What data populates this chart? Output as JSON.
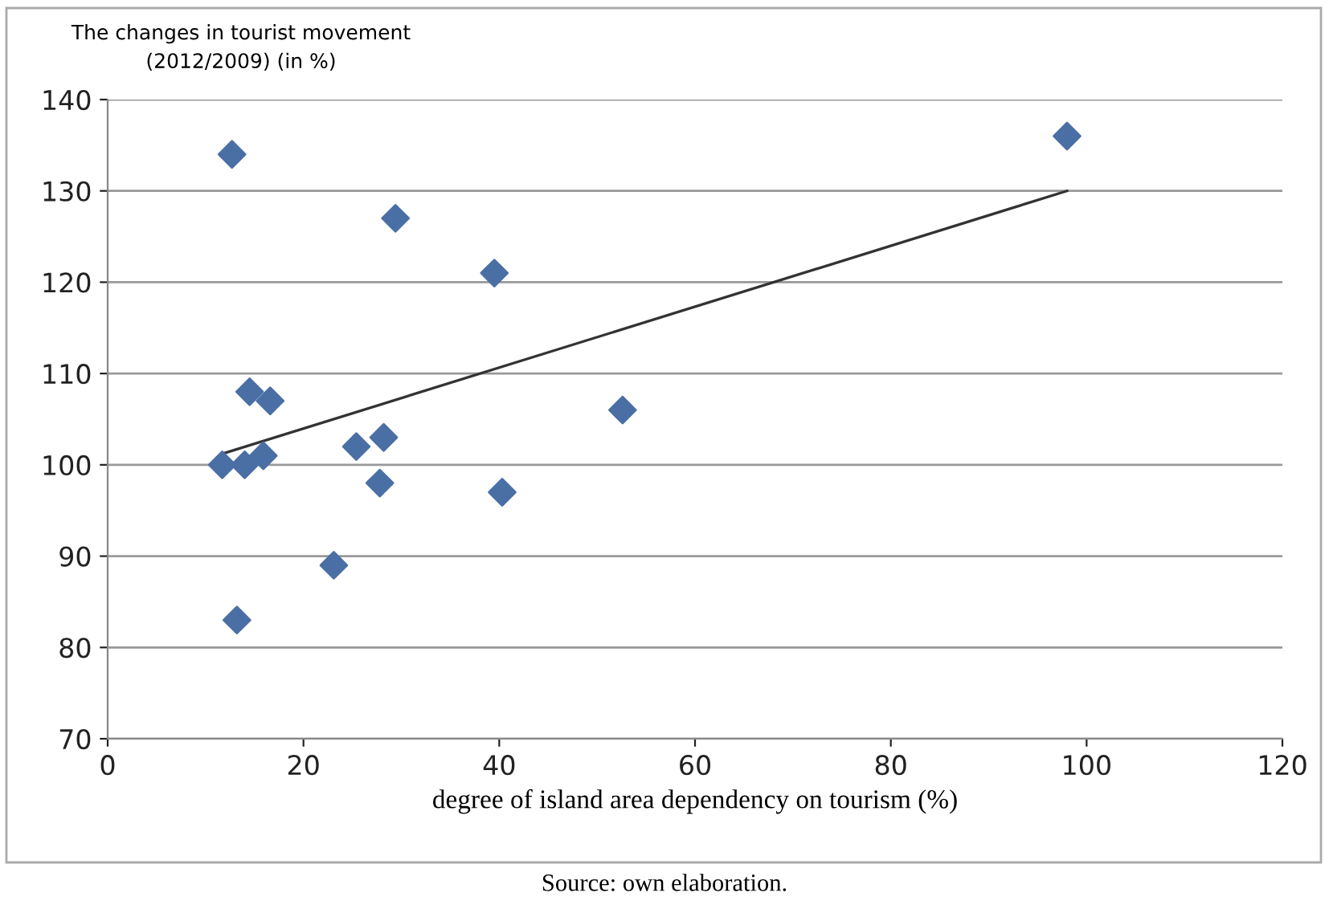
{
  "chart_data": {
    "type": "scatter",
    "title": "The changes in tourist movement\n(2012/2009) (in %)",
    "xlabel": "degree of island area dependency on tourism (%)",
    "annotations": [
      "Source: own elaboration."
    ],
    "xlim": [
      0,
      120
    ],
    "xticks": [
      0,
      20,
      40,
      60,
      80,
      100,
      120
    ],
    "ylim": [
      70,
      140
    ],
    "yticks": [
      70,
      80,
      90,
      100,
      110,
      120,
      130,
      140
    ],
    "grid": "y",
    "series": [
      {
        "marker": "diamond",
        "color": "#4a6fa5",
        "x": [
          12.7,
          29.4,
          39.5,
          14.5,
          16.6,
          52.6,
          11.7,
          14.0,
          15.9,
          25.4,
          28.2,
          27.8,
          40.3,
          23.1,
          13.2,
          98.0
        ],
        "values": [
          134,
          127,
          121,
          108,
          107,
          106,
          100,
          100,
          101,
          102,
          103,
          98,
          97,
          89,
          83,
          136
        ]
      },
      {
        "type": "line",
        "marker": "none",
        "color": "#333333",
        "x": [
          11.7,
          98.0
        ],
        "values": [
          101.2,
          130
        ]
      }
    ]
  }
}
